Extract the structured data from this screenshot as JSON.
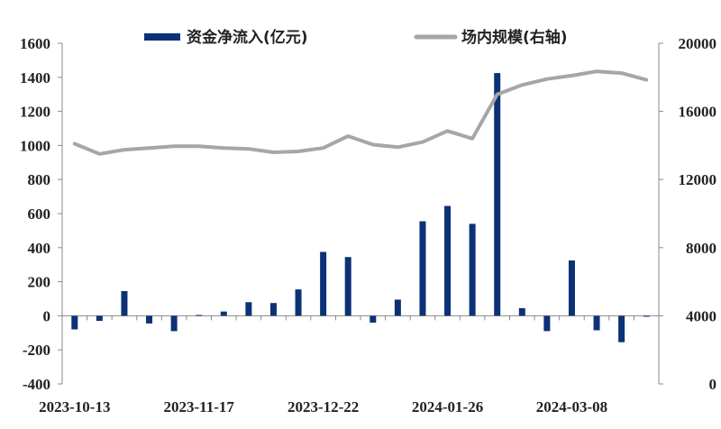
{
  "chart_data": {
    "type": "bar+line",
    "legend_position": "top",
    "grid": false,
    "x_tick_labels": [
      "2023-10-13",
      "2023-11-17",
      "2023-12-22",
      "2024-01-26",
      "2024-03-08"
    ],
    "left_axis": {
      "min": -400,
      "max": 1600,
      "step": 200
    },
    "right_axis": {
      "min": 0,
      "max": 20000,
      "step": 4000
    },
    "series": [
      {
        "name": "资金净流入(亿元)",
        "type": "bar",
        "axis": "left",
        "color": "#0d3177",
        "values": [
          -80,
          -30,
          145,
          -45,
          -90,
          5,
          25,
          80,
          75,
          155,
          375,
          345,
          -40,
          95,
          555,
          645,
          540,
          1425,
          45,
          -90,
          325,
          -85,
          -155,
          -5
        ]
      },
      {
        "name": "场内规模(右轴)",
        "type": "line",
        "axis": "right",
        "color": "#a6a6a6",
        "values": [
          14100,
          13500,
          13750,
          13850,
          13950,
          13950,
          13850,
          13800,
          13600,
          13650,
          13850,
          14550,
          14050,
          13900,
          14200,
          14850,
          14400,
          17000,
          17550,
          17900,
          18100,
          18350,
          18250,
          17850
        ]
      }
    ]
  }
}
